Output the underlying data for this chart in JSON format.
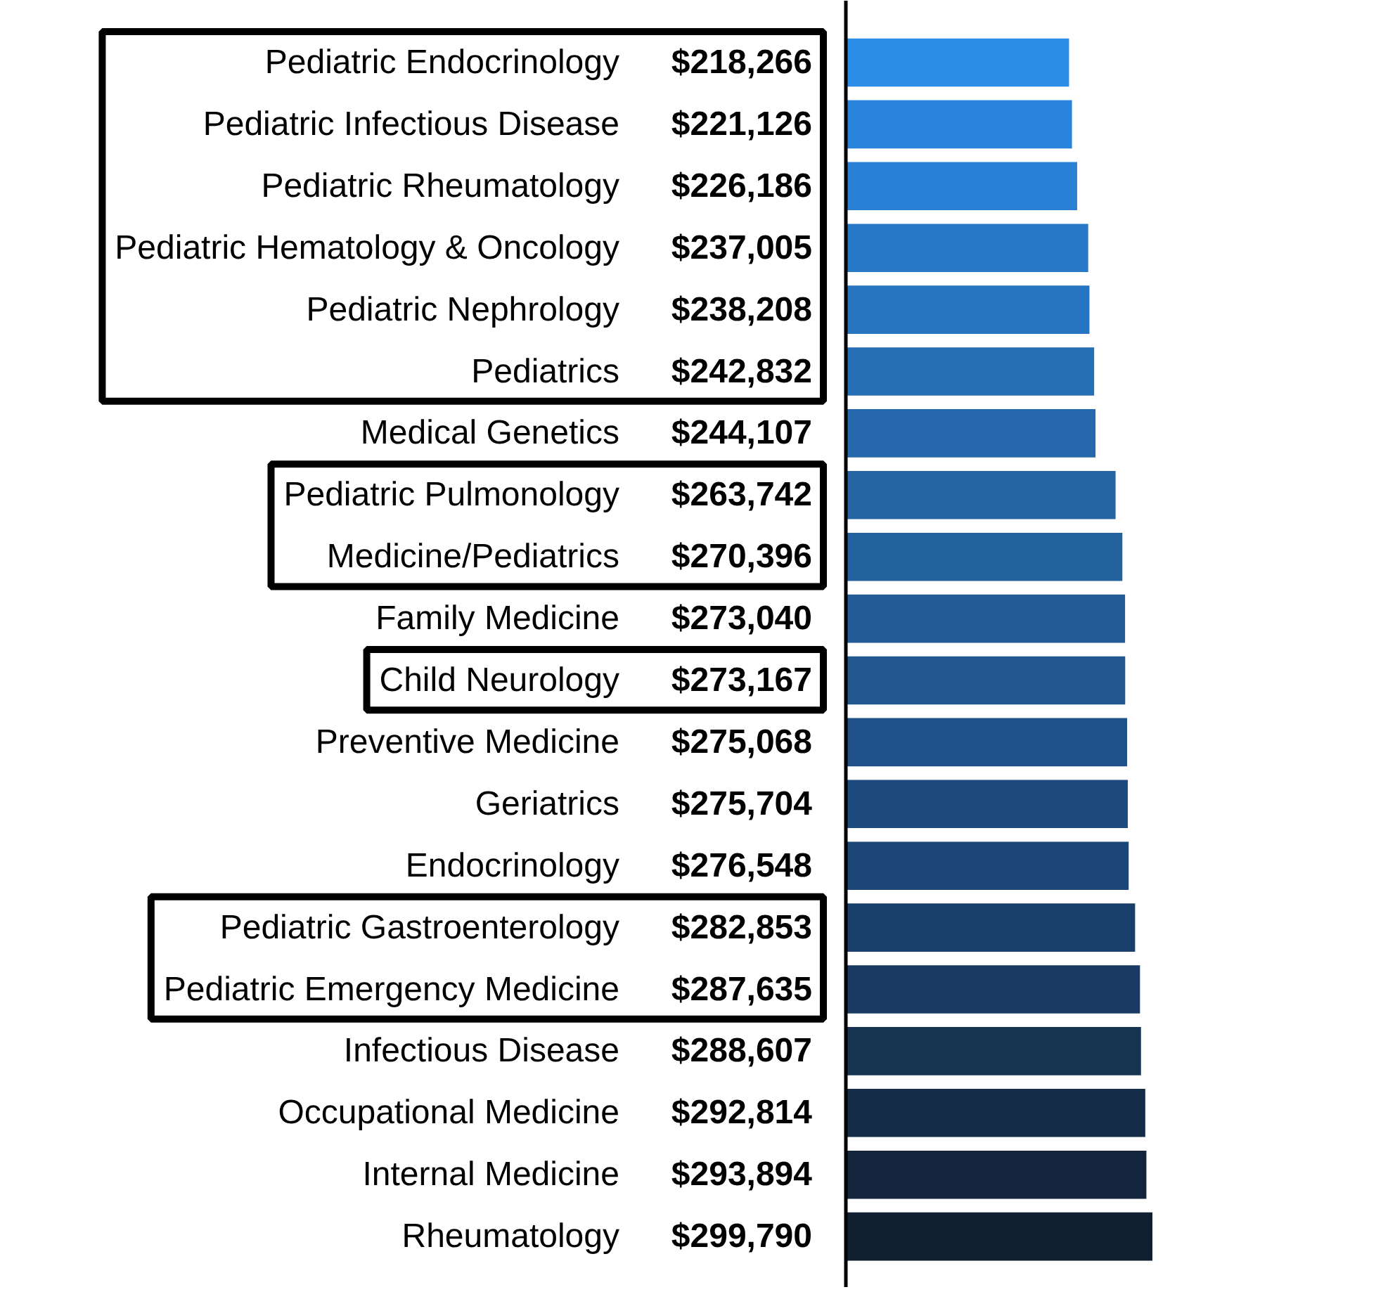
{
  "chart_data": {
    "type": "bar",
    "orientation": "horizontal",
    "categories": [
      "Pediatric Endocrinology",
      "Pediatric Infectious Disease",
      "Pediatric Rheumatology",
      "Pediatric Hematology & Oncology",
      "Pediatric Nephrology",
      "Pediatrics",
      "Medical Genetics",
      "Pediatric Pulmonology",
      "Medicine/Pediatrics",
      "Family Medicine",
      "Child Neurology",
      "Preventive Medicine",
      "Geriatrics",
      "Endocrinology",
      "Pediatric Gastroenterology",
      "Pediatric Emergency Medicine",
      "Infectious Disease",
      "Occupational Medicine",
      "Internal Medicine",
      "Rheumatology"
    ],
    "values": [
      218266,
      221126,
      226186,
      237005,
      238208,
      242832,
      244107,
      263742,
      270396,
      273040,
      273167,
      275068,
      275704,
      276548,
      282853,
      287635,
      288607,
      292814,
      293894,
      299790
    ],
    "value_labels": [
      "$218,266",
      "$221,126",
      "$226,186",
      "$237,005",
      "$238,208",
      "$242,832",
      "$244,107",
      "$263,742",
      "$270,396",
      "$273,040",
      "$273,167",
      "$275,068",
      "$275,704",
      "$276,548",
      "$282,853",
      "$287,635",
      "$288,607",
      "$292,814",
      "$293,894",
      "$299,790"
    ],
    "colors": [
      "#2c8de9",
      "#2a84dc",
      "#2a80d4",
      "#2878c8",
      "#2774c0",
      "#266eb6",
      "#2569ac",
      "#2565a4",
      "#23619e",
      "#225b95",
      "#21578f",
      "#1f5087",
      "#1e4b7f",
      "#1c4676",
      "#1a3f6a",
      "#193b63",
      "#163452",
      "#142c48",
      "#13263d",
      "#102030"
    ]
  }
}
